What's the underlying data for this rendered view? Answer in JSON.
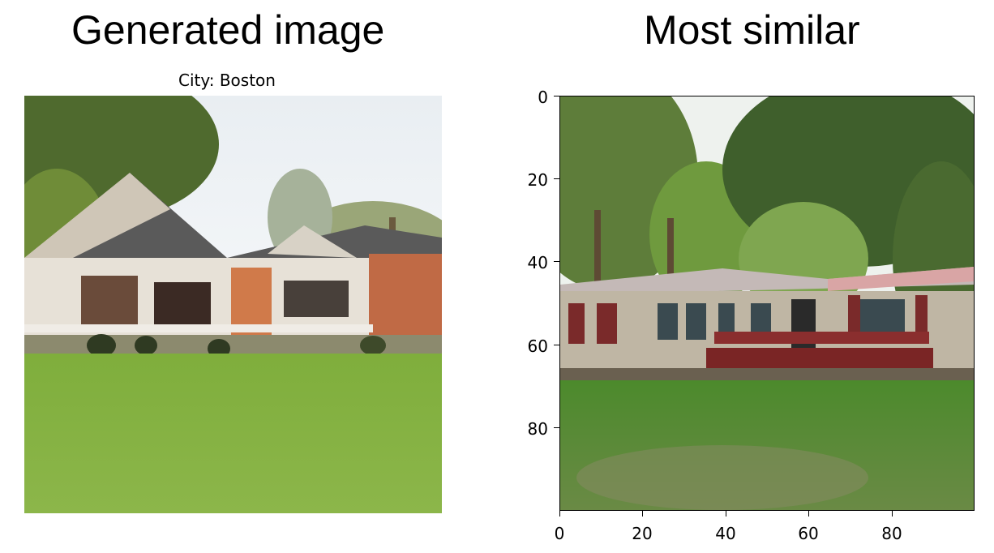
{
  "left_panel": {
    "heading": "Generated image",
    "subtitle": "City: Boston",
    "image_icon": "house-photo"
  },
  "right_panel": {
    "heading": "Most similar",
    "image_icon": "house-photo",
    "y_ticks": [
      "0",
      "20",
      "40",
      "60",
      "80"
    ],
    "x_ticks": [
      "0",
      "20",
      "40",
      "60",
      "80"
    ],
    "axis_range": [
      0,
      100
    ]
  }
}
